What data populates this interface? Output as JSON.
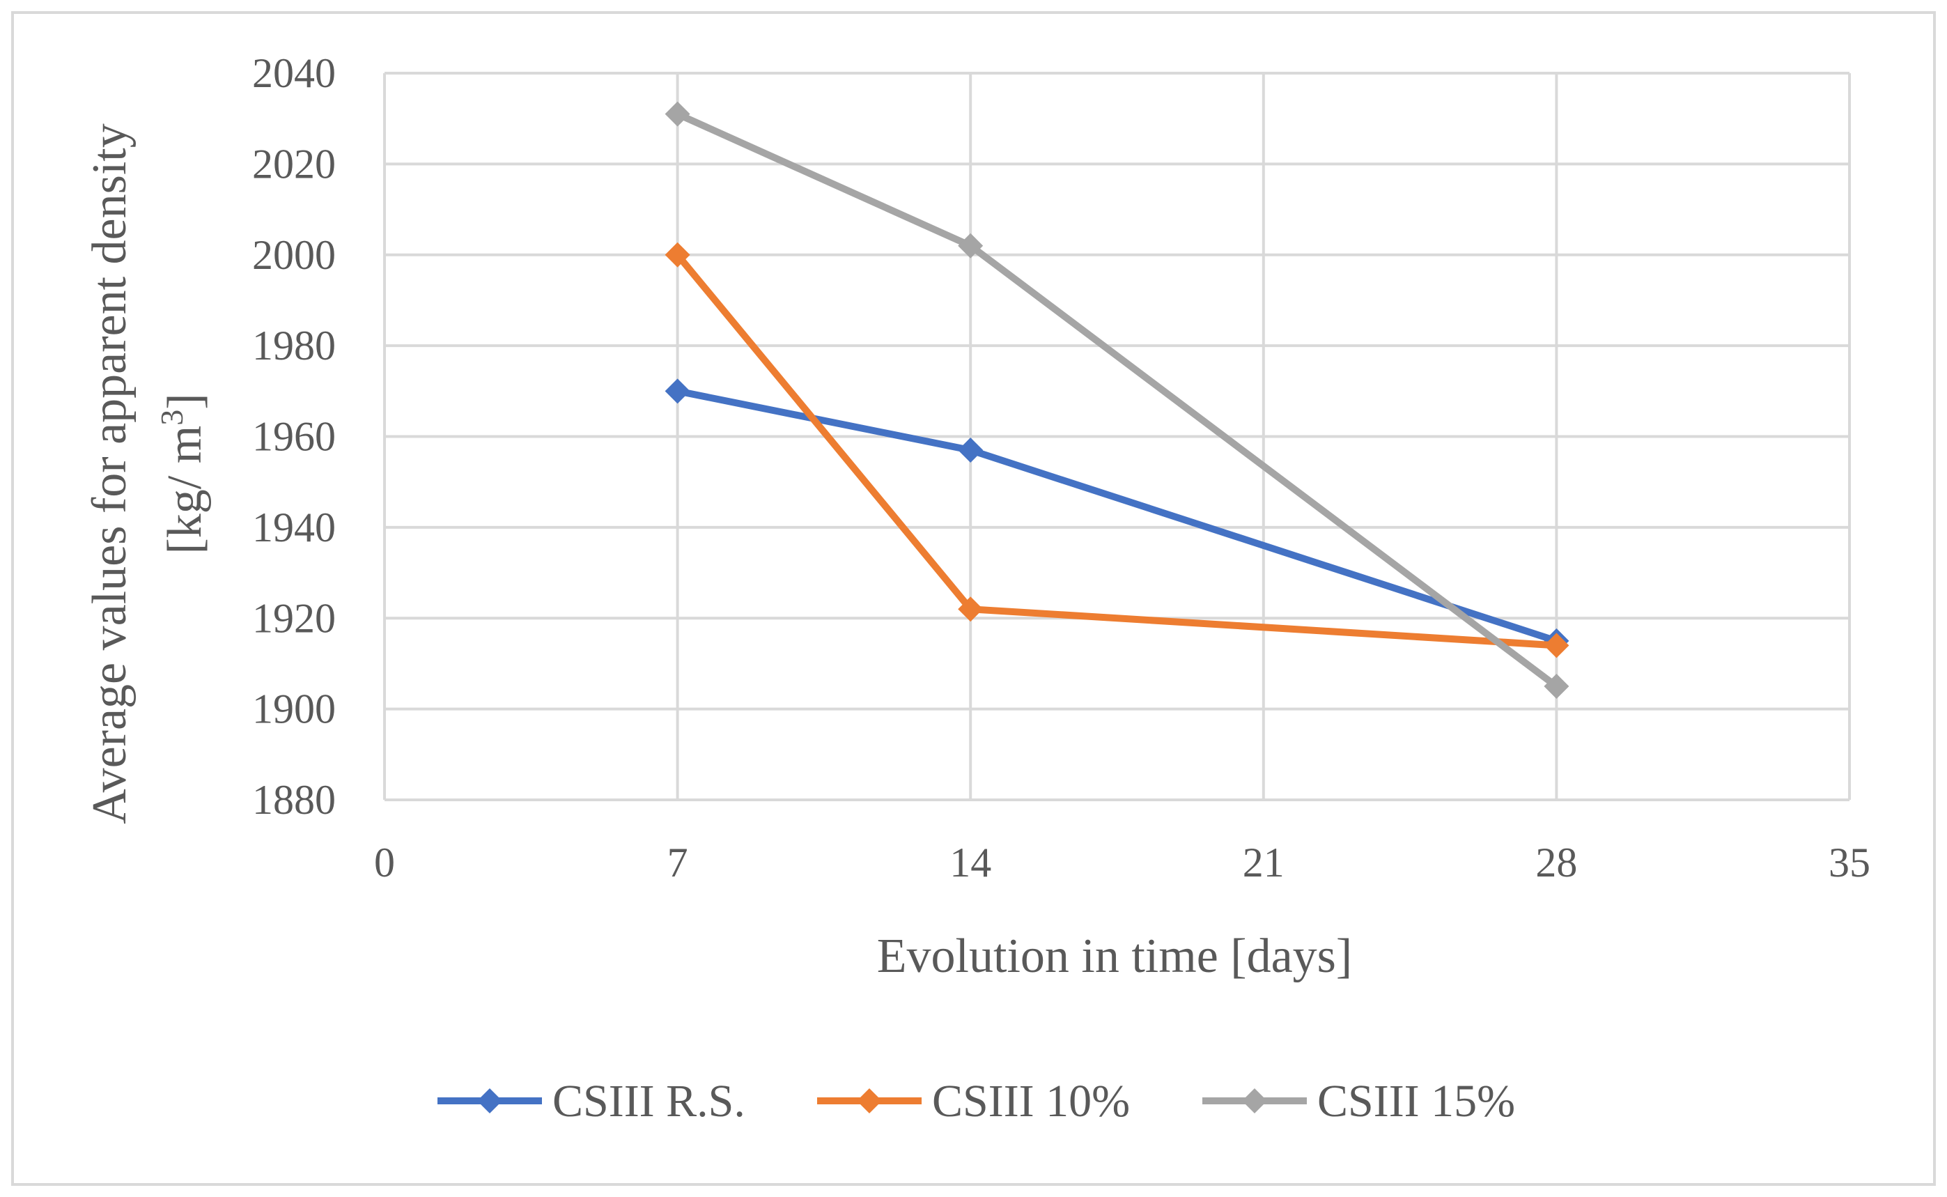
{
  "colors": {
    "series": [
      "#4472C4",
      "#ED7D31",
      "#A5A5A5"
    ],
    "grid": "#D9D9D9",
    "border": "#D9D9D9",
    "text": "#595959"
  },
  "chart_data": {
    "type": "scatter",
    "title": "",
    "xlabel": "Evolution in time  [days]",
    "ylabel_line1": "Average values for apparent density",
    "ylabel_line2_prefix": "[kg/ m",
    "ylabel_line2_sup": "3",
    "ylabel_line2_suffix": "]",
    "xlim": [
      0,
      35
    ],
    "ylim": [
      1880,
      2040
    ],
    "xticks": [
      0,
      7,
      14,
      21,
      28,
      35
    ],
    "yticks": [
      1880,
      1900,
      1920,
      1940,
      1960,
      1980,
      2000,
      2020,
      2040
    ],
    "grid": true,
    "legend": "bottom",
    "series": [
      {
        "name": "CSIII R.S.",
        "x": [
          7,
          14,
          28
        ],
        "y": [
          1970,
          1957,
          1915
        ]
      },
      {
        "name": "CSIII 10%",
        "x": [
          7,
          14,
          28
        ],
        "y": [
          2000,
          1922,
          1914
        ]
      },
      {
        "name": "CSIII 15%",
        "x": [
          7,
          14,
          28
        ],
        "y": [
          2031,
          2002,
          1905
        ]
      }
    ]
  }
}
